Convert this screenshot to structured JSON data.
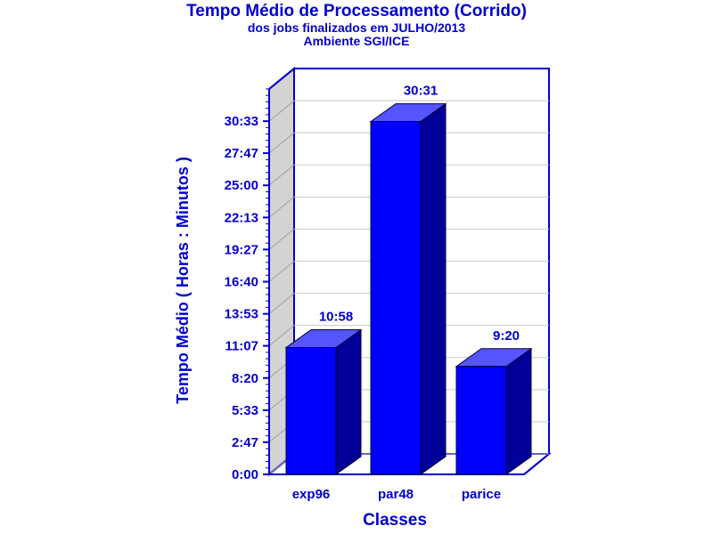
{
  "chart_data": {
    "type": "bar",
    "title": "Tempo Médio de Processamento (Corrido)",
    "subtitle_lines": [
      "dos jobs finalizados em JULHO/2013",
      "Ambiente SGI/ICE"
    ],
    "xlabel": "Classes",
    "ylabel": "Tempo Médio ( Horas : Minutos )",
    "categories": [
      "exp96",
      "par48",
      "parice"
    ],
    "values": [
      10.967,
      30.517,
      9.333
    ],
    "value_labels": [
      "10:58",
      "30:31",
      "9:20"
    ],
    "yticks": [
      0,
      2.783,
      5.55,
      8.333,
      11.117,
      13.883,
      16.667,
      19.45,
      22.217,
      25.0,
      27.783,
      30.55
    ],
    "ytick_labels": [
      "0:00",
      "2:47",
      "5:33",
      "8:20",
      "11:07",
      "13:53",
      "16:40",
      "19:27",
      "22:13",
      "25:00",
      "27:47",
      "30:33"
    ],
    "ylim": [
      0,
      33.333
    ],
    "grid": true,
    "colors": {
      "text": "#0000cc",
      "front": "#0000ff",
      "top": "#5555ff",
      "side": "#000099",
      "wall": "#d3d3d3",
      "axis": "#0000cc"
    }
  }
}
